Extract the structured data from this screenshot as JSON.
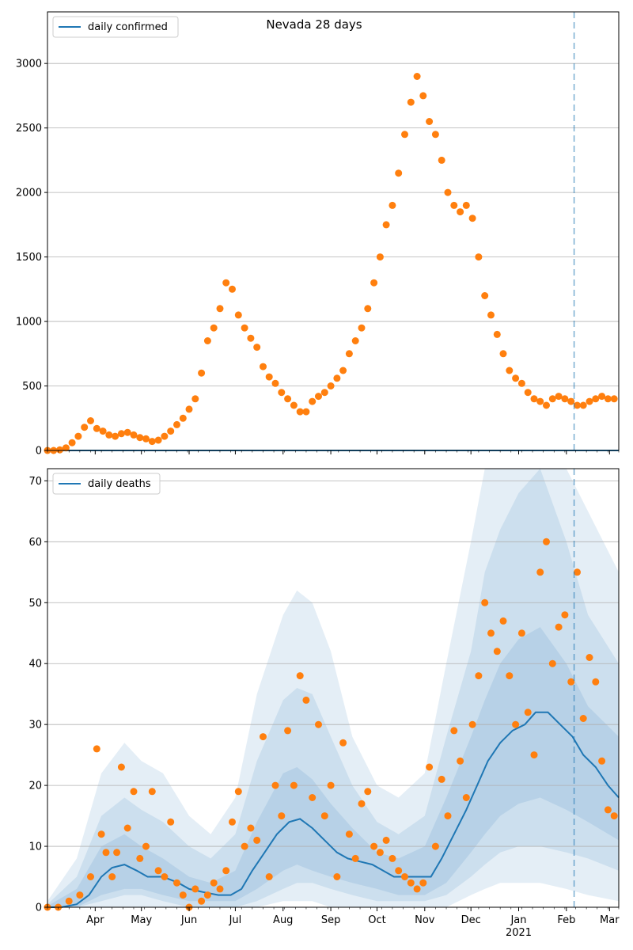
{
  "chart_data": [
    {
      "type": "scatter",
      "title": "Nevada 28 days",
      "legend": "top-left",
      "grid": "y",
      "ylim": [
        0,
        3400
      ],
      "yticks": [
        0,
        500,
        1000,
        1500,
        2000,
        2500,
        3000
      ],
      "ytick_labels": [
        "0",
        "500",
        "1000",
        "1500",
        "2000",
        "2500",
        "3000"
      ],
      "marker_color": "#ff7f0e",
      "line_color": "#1f77b4",
      "vline_date": "2021-02-06",
      "series": [
        {
          "name": "daily confirmed",
          "kind": "line",
          "x": [
            "2020-03-01",
            "2021-03-07"
          ],
          "y": [
            0,
            0
          ]
        },
        {
          "name": "",
          "kind": "points",
          "x": [
            "2020-03-01",
            "2020-03-05",
            "2020-03-09",
            "2020-03-13",
            "2020-03-17",
            "2020-03-21",
            "2020-03-25",
            "2020-03-29",
            "2020-04-02",
            "2020-04-06",
            "2020-04-10",
            "2020-04-14",
            "2020-04-18",
            "2020-04-22",
            "2020-04-26",
            "2020-04-30",
            "2020-05-04",
            "2020-05-08",
            "2020-05-12",
            "2020-05-16",
            "2020-05-20",
            "2020-05-24",
            "2020-05-28",
            "2020-06-01",
            "2020-06-05",
            "2020-06-09",
            "2020-06-13",
            "2020-06-17",
            "2020-06-21",
            "2020-06-25",
            "2020-06-29",
            "2020-07-03",
            "2020-07-07",
            "2020-07-11",
            "2020-07-15",
            "2020-07-19",
            "2020-07-23",
            "2020-07-27",
            "2020-07-31",
            "2020-08-04",
            "2020-08-08",
            "2020-08-12",
            "2020-08-16",
            "2020-08-20",
            "2020-08-24",
            "2020-08-28",
            "2020-09-01",
            "2020-09-05",
            "2020-09-09",
            "2020-09-13",
            "2020-09-17",
            "2020-09-21",
            "2020-09-25",
            "2020-09-29",
            "2020-10-03",
            "2020-10-07",
            "2020-10-11",
            "2020-10-15",
            "2020-10-19",
            "2020-10-23",
            "2020-10-27",
            "2020-10-31",
            "2020-11-04",
            "2020-11-08",
            "2020-11-12",
            "2020-11-16",
            "2020-11-20",
            "2020-11-24",
            "2020-11-28",
            "2020-12-02",
            "2020-12-06",
            "2020-12-10",
            "2020-12-14",
            "2020-12-18",
            "2020-12-22",
            "2020-12-26",
            "2020-12-30",
            "2021-01-03",
            "2021-01-07",
            "2021-01-11",
            "2021-01-15",
            "2021-01-19",
            "2021-01-23",
            "2021-01-27",
            "2021-01-31",
            "2021-02-04",
            "2021-02-08",
            "2021-02-12",
            "2021-02-16",
            "2021-02-20",
            "2021-02-24",
            "2021-02-28",
            "2021-03-04"
          ],
          "y": [
            0,
            0,
            5,
            20,
            60,
            110,
            180,
            230,
            170,
            150,
            120,
            110,
            130,
            140,
            120,
            100,
            90,
            70,
            80,
            110,
            150,
            200,
            250,
            320,
            400,
            600,
            850,
            950,
            1100,
            1300,
            1250,
            1050,
            950,
            870,
            800,
            650,
            570,
            520,
            450,
            400,
            350,
            300,
            300,
            380,
            420,
            450,
            500,
            560,
            620,
            750,
            850,
            950,
            1100,
            1300,
            1500,
            1750,
            1900,
            2150,
            2450,
            2700,
            2900,
            2750,
            2550,
            2450,
            2250,
            2000,
            1900,
            1850,
            1900,
            1800,
            1500,
            1200,
            1050,
            900,
            750,
            620,
            560,
            520,
            450,
            400,
            380,
            350,
            400,
            420,
            400,
            380,
            350,
            350,
            380,
            400,
            420,
            400,
            400
          ]
        }
      ]
    },
    {
      "type": "scatter",
      "title": "",
      "legend": "top-left",
      "grid": "y",
      "ylim": [
        0,
        72
      ],
      "yticks": [
        0,
        10,
        20,
        30,
        40,
        50,
        60,
        70
      ],
      "ytick_labels": [
        "0",
        "10",
        "20",
        "30",
        "40",
        "50",
        "60",
        "70"
      ],
      "xtick_labels": [
        {
          "date": "2020-04-01",
          "label": "Apr"
        },
        {
          "date": "2020-05-01",
          "label": "May"
        },
        {
          "date": "2020-06-01",
          "label": "Jun"
        },
        {
          "date": "2020-07-01",
          "label": "Jul"
        },
        {
          "date": "2020-08-01",
          "label": "Aug"
        },
        {
          "date": "2020-09-01",
          "label": "Sep"
        },
        {
          "date": "2020-10-01",
          "label": "Oct"
        },
        {
          "date": "2020-11-01",
          "label": "Nov"
        },
        {
          "date": "2020-12-01",
          "label": "Dec"
        },
        {
          "date": "2021-01-01",
          "label": "Jan"
        },
        {
          "date": "2021-02-01",
          "label": "Feb"
        },
        {
          "date": "2021-03-01",
          "label": "Mar"
        }
      ],
      "year_label": {
        "date": "2021-01-01",
        "label": "2021"
      },
      "marker_color": "#ff7f0e",
      "line_color": "#1f77b4",
      "band_color": "#1f77b4",
      "vline_date": "2021-02-06",
      "series": [
        {
          "name": "daily deaths",
          "kind": "line",
          "x": [
            "2020-03-01",
            "2020-03-10",
            "2020-03-20",
            "2020-03-28",
            "2020-04-05",
            "2020-04-12",
            "2020-04-20",
            "2020-04-28",
            "2020-05-05",
            "2020-05-15",
            "2020-05-25",
            "2020-06-01",
            "2020-06-10",
            "2020-06-20",
            "2020-06-28",
            "2020-07-05",
            "2020-07-12",
            "2020-07-20",
            "2020-07-28",
            "2020-08-05",
            "2020-08-12",
            "2020-08-20",
            "2020-08-28",
            "2020-09-05",
            "2020-09-12",
            "2020-09-20",
            "2020-09-28",
            "2020-10-05",
            "2020-10-12",
            "2020-10-20",
            "2020-10-28",
            "2020-11-05",
            "2020-11-12",
            "2020-11-20",
            "2020-11-28",
            "2020-12-05",
            "2020-12-12",
            "2020-12-20",
            "2020-12-28",
            "2021-01-05",
            "2021-01-12",
            "2021-01-20",
            "2021-01-28",
            "2021-02-05",
            "2021-02-12",
            "2021-02-20",
            "2021-02-28",
            "2021-03-07"
          ],
          "y": [
            0,
            0,
            0.5,
            2,
            5,
            6.5,
            7,
            6,
            5,
            5,
            4,
            3,
            2.5,
            2,
            2,
            3,
            6,
            9,
            12,
            14,
            14.5,
            13,
            11,
            9,
            8,
            7.5,
            7,
            6,
            5,
            5,
            5,
            5,
            8,
            12,
            16,
            20,
            24,
            27,
            29,
            30,
            32,
            32,
            30,
            28,
            25,
            23,
            20,
            18
          ]
        },
        {
          "name": "",
          "kind": "points",
          "x": [
            "2020-03-01",
            "2020-03-08",
            "2020-03-15",
            "2020-03-22",
            "2020-03-29",
            "2020-04-02",
            "2020-04-05",
            "2020-04-08",
            "2020-04-12",
            "2020-04-15",
            "2020-04-18",
            "2020-04-22",
            "2020-04-26",
            "2020-04-30",
            "2020-05-04",
            "2020-05-08",
            "2020-05-12",
            "2020-05-16",
            "2020-05-20",
            "2020-05-24",
            "2020-05-28",
            "2020-06-01",
            "2020-06-05",
            "2020-06-09",
            "2020-06-13",
            "2020-06-17",
            "2020-06-21",
            "2020-06-25",
            "2020-06-29",
            "2020-07-03",
            "2020-07-07",
            "2020-07-11",
            "2020-07-15",
            "2020-07-19",
            "2020-07-23",
            "2020-07-27",
            "2020-07-31",
            "2020-08-04",
            "2020-08-08",
            "2020-08-12",
            "2020-08-16",
            "2020-08-20",
            "2020-08-24",
            "2020-08-28",
            "2020-09-01",
            "2020-09-05",
            "2020-09-09",
            "2020-09-13",
            "2020-09-17",
            "2020-09-21",
            "2020-09-25",
            "2020-09-29",
            "2020-10-03",
            "2020-10-07",
            "2020-10-11",
            "2020-10-15",
            "2020-10-19",
            "2020-10-23",
            "2020-10-27",
            "2020-10-31",
            "2020-11-04",
            "2020-11-08",
            "2020-11-12",
            "2020-11-16",
            "2020-11-20",
            "2020-11-24",
            "2020-11-28",
            "2020-12-02",
            "2020-12-06",
            "2020-12-10",
            "2020-12-14",
            "2020-12-18",
            "2020-12-22",
            "2020-12-26",
            "2020-12-30",
            "2021-01-03",
            "2021-01-07",
            "2021-01-11",
            "2021-01-15",
            "2021-01-19",
            "2021-01-23",
            "2021-01-27",
            "2021-01-31",
            "2021-02-04",
            "2021-02-08",
            "2021-02-12",
            "2021-02-16",
            "2021-02-20",
            "2021-02-24",
            "2021-02-28",
            "2021-03-04"
          ],
          "y": [
            0,
            0,
            1,
            2,
            5,
            26,
            12,
            9,
            5,
            9,
            23,
            13,
            19,
            8,
            10,
            19,
            6,
            5,
            14,
            4,
            2,
            0,
            3,
            1,
            2,
            4,
            3,
            6,
            14,
            19,
            10,
            13,
            11,
            28,
            5,
            20,
            15,
            29,
            20,
            38,
            34,
            18,
            30,
            15,
            20,
            5,
            27,
            12,
            8,
            17,
            19,
            10,
            9,
            11,
            8,
            6,
            5,
            4,
            3,
            4,
            23,
            10,
            21,
            15,
            29,
            24,
            18,
            30,
            38,
            50,
            45,
            42,
            47,
            38,
            30,
            45,
            32,
            25,
            55,
            60,
            40,
            46,
            48,
            37,
            55,
            31,
            41,
            37,
            24,
            16,
            15
          ]
        },
        {
          "name": "",
          "kind": "band",
          "level": "outer",
          "x": [
            "2020-03-01",
            "2020-03-20",
            "2020-04-05",
            "2020-04-20",
            "2020-05-01",
            "2020-05-15",
            "2020-06-01",
            "2020-06-15",
            "2020-07-01",
            "2020-07-15",
            "2020-08-01",
            "2020-08-10",
            "2020-08-20",
            "2020-09-01",
            "2020-09-15",
            "2020-10-01",
            "2020-10-15",
            "2020-11-01",
            "2020-11-15",
            "2020-12-01",
            "2020-12-10",
            "2020-12-20",
            "2021-01-01",
            "2021-01-15",
            "2021-02-01",
            "2021-02-15",
            "2021-03-07"
          ],
          "lower": [
            0,
            0,
            0,
            0,
            0,
            0,
            0,
            0,
            0,
            0,
            1,
            1,
            1,
            0,
            0,
            0,
            0,
            0,
            0,
            2,
            3,
            4,
            4,
            4,
            3,
            2,
            1
          ],
          "upper": [
            1,
            8,
            22,
            27,
            24,
            22,
            15,
            12,
            18,
            35,
            48,
            52,
            50,
            42,
            28,
            20,
            18,
            22,
            40,
            60,
            72,
            72,
            72,
            72,
            72,
            65,
            55
          ]
        },
        {
          "name": "",
          "kind": "band",
          "level": "middle",
          "x": [
            "2020-03-01",
            "2020-03-20",
            "2020-04-05",
            "2020-04-20",
            "2020-05-01",
            "2020-05-15",
            "2020-06-01",
            "2020-06-15",
            "2020-07-01",
            "2020-07-15",
            "2020-08-01",
            "2020-08-10",
            "2020-08-20",
            "2020-09-01",
            "2020-09-15",
            "2020-10-01",
            "2020-10-15",
            "2020-11-01",
            "2020-11-15",
            "2020-12-01",
            "2020-12-10",
            "2020-12-20",
            "2021-01-01",
            "2021-01-15",
            "2021-02-01",
            "2021-02-15",
            "2021-03-07"
          ],
          "lower": [
            0,
            0,
            1,
            2,
            2,
            1,
            0,
            0,
            0,
            1,
            3,
            4,
            4,
            3,
            2,
            1,
            1,
            1,
            2,
            5,
            7,
            9,
            10,
            10,
            9,
            8,
            6
          ],
          "upper": [
            0.5,
            5,
            15,
            18,
            16,
            14,
            10,
            8,
            12,
            24,
            34,
            36,
            35,
            28,
            20,
            14,
            12,
            15,
            28,
            42,
            55,
            62,
            68,
            72,
            60,
            48,
            40
          ]
        },
        {
          "name": "",
          "kind": "band",
          "level": "inner",
          "x": [
            "2020-03-01",
            "2020-03-20",
            "2020-04-05",
            "2020-04-20",
            "2020-05-01",
            "2020-05-15",
            "2020-06-01",
            "2020-06-15",
            "2020-07-01",
            "2020-07-15",
            "2020-08-01",
            "2020-08-10",
            "2020-08-20",
            "2020-09-01",
            "2020-09-15",
            "2020-10-01",
            "2020-10-15",
            "2020-11-01",
            "2020-11-15",
            "2020-12-01",
            "2020-12-10",
            "2020-12-20",
            "2021-01-01",
            "2021-01-15",
            "2021-02-01",
            "2021-02-15",
            "2021-03-07"
          ],
          "lower": [
            0,
            0,
            2,
            3,
            3,
            2,
            1,
            1,
            1,
            3,
            6,
            7,
            6,
            5,
            4,
            3,
            2,
            2,
            4,
            9,
            12,
            15,
            17,
            18,
            16,
            14,
            11
          ],
          "upper": [
            0.2,
            3,
            10,
            12,
            10,
            8,
            5,
            4,
            6,
            14,
            22,
            23,
            21,
            17,
            13,
            9,
            8,
            10,
            18,
            28,
            34,
            40,
            44,
            46,
            40,
            33,
            28
          ]
        }
      ]
    }
  ]
}
